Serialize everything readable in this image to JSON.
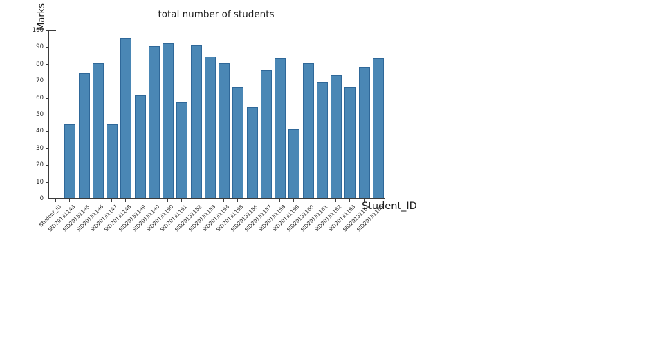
{
  "chart_data": {
    "type": "bar",
    "title": "total number of students",
    "xlabel": "Student_ID",
    "ylabel": "Marks",
    "ylim": [
      0,
      100
    ],
    "yticks": [
      0,
      10,
      20,
      30,
      40,
      50,
      60,
      70,
      80,
      90,
      100
    ],
    "categories": [
      "Student_ID",
      "SID20131143",
      "SID20131145",
      "SID20131146",
      "SID20131147",
      "SID20131148",
      "SID20131149",
      "SID20131140",
      "SID20131150",
      "SID20131151",
      "SID20131152",
      "SID20131153",
      "SID20131154",
      "SID20131155",
      "SID20131156",
      "SID20131157",
      "SID20131158",
      "SID20131159",
      "SID20131160",
      "SID20131161",
      "SID20131162",
      "SID20131163",
      "SID20131164",
      "SID20131165"
    ],
    "values": [
      0,
      44,
      74,
      80,
      44,
      95,
      61,
      90,
      92,
      57,
      91,
      84,
      80,
      66,
      54,
      76,
      83,
      41,
      80,
      69,
      73,
      66,
      78,
      83
    ],
    "bar_color": "#4a87b5",
    "bar_edge_color": "#2f6899",
    "axis_color": "#3b3b3b",
    "text_color": "#1a1a1a",
    "tick_label_color": "#262626",
    "grid": false,
    "legend_position": "none",
    "x_tick_rotation_deg": 45
  }
}
